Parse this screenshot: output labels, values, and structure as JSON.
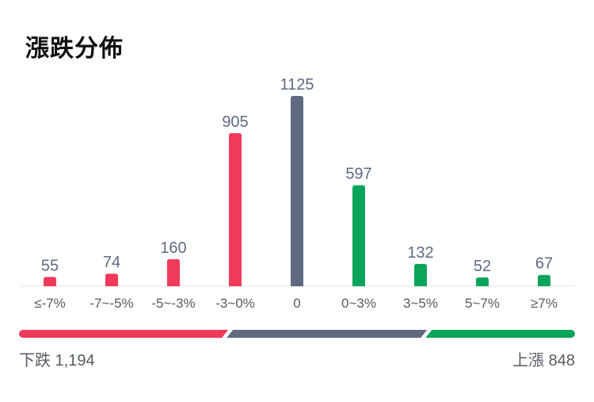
{
  "title": "漲跌分佈",
  "colors": {
    "down": "#ef3a5a",
    "flat": "#5e6a80",
    "up": "#0aa55a",
    "value_label": "#5e6a80",
    "tick_label": "#555a63",
    "axis": "#e6e6e6"
  },
  "chart_data": {
    "type": "bar",
    "title": "漲跌分佈",
    "xlabel": "",
    "ylabel": "",
    "categories": [
      "≤-7%",
      "-7~-5%",
      "-5~-3%",
      "-3~0%",
      "0",
      "0~3%",
      "3~5%",
      "5~7%",
      "≥7%"
    ],
    "values": [
      55,
      74,
      160,
      905,
      1125,
      597,
      132,
      52,
      67
    ],
    "bar_groups": [
      "down",
      "down",
      "down",
      "down",
      "flat",
      "up",
      "up",
      "up",
      "up"
    ],
    "data_labels": [
      "55",
      "74",
      "160",
      "905",
      "1125",
      "597",
      "132",
      "52",
      "67"
    ],
    "ylim": [
      0,
      1125
    ],
    "grid": false,
    "legend": "none"
  },
  "summary": {
    "down_label": "下跌 1,194",
    "up_label": "上漲 848",
    "down_count": 1194,
    "flat_count": 1125,
    "up_count": 848
  }
}
